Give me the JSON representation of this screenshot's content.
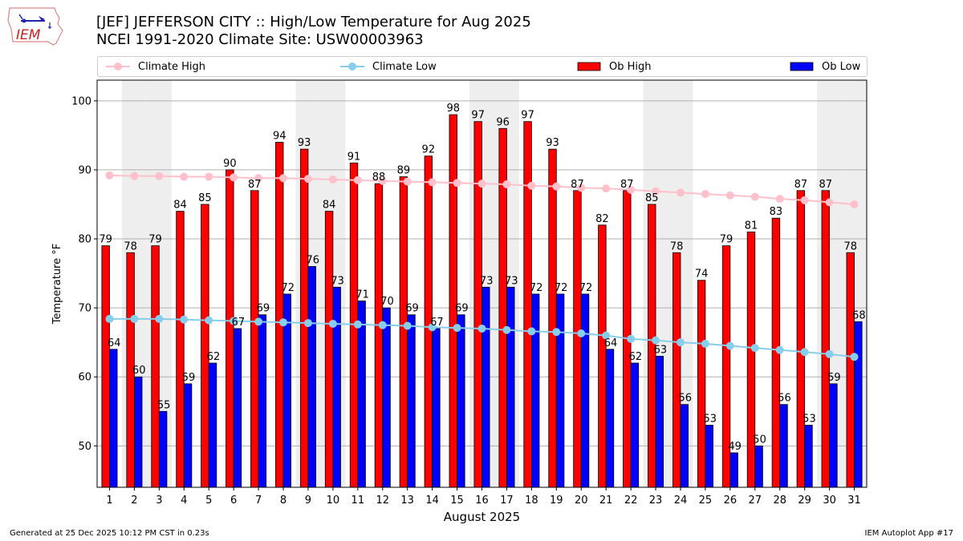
{
  "header": {
    "title_line1": "[JEF] JEFFERSON CITY :: High/Low Temperature for Aug 2025",
    "title_line2": "NCEI 1991-2020 Climate Site: USW00003963",
    "logo_text": "IEM"
  },
  "legend": {
    "items": [
      {
        "label": "Climate High",
        "color": "#ffc0cb",
        "kind": "line"
      },
      {
        "label": "Climate Low",
        "color": "#87ceeb",
        "kind": "line"
      },
      {
        "label": "Ob High",
        "color": "#ff0000",
        "kind": "bar"
      },
      {
        "label": "Ob Low",
        "color": "#0000ff",
        "kind": "bar"
      }
    ]
  },
  "footer": {
    "left": "Generated at 25 Dec 2025 10:12 PM CST in 0.23s",
    "right": "IEM Autoplot App #17"
  },
  "chart_data": {
    "type": "bar",
    "title": "[JEF] JEFFERSON CITY :: High/Low Temperature for Aug 2025",
    "subtitle": "NCEI 1991-2020 Climate Site: USW00003963",
    "xlabel": "August 2025",
    "ylabel": "Temperature °F",
    "ylim": [
      44,
      103
    ],
    "yticks": [
      50,
      60,
      70,
      80,
      90,
      100
    ],
    "grid": true,
    "legend_position": "top",
    "categories": [
      "1",
      "2",
      "3",
      "4",
      "5",
      "6",
      "7",
      "8",
      "9",
      "10",
      "11",
      "12",
      "13",
      "14",
      "15",
      "16",
      "17",
      "18",
      "19",
      "20",
      "21",
      "22",
      "23",
      "24",
      "25",
      "26",
      "27",
      "28",
      "29",
      "30",
      "31"
    ],
    "weekend_days": [
      2,
      3,
      9,
      10,
      16,
      17,
      23,
      24,
      30,
      31
    ],
    "series": [
      {
        "name": "Ob High",
        "type": "bar",
        "color": "#ff0000",
        "values": [
          79,
          78,
          79,
          84,
          85,
          90,
          87,
          94,
          93,
          84,
          91,
          88,
          89,
          92,
          98,
          97,
          96,
          97,
          93,
          87,
          82,
          87,
          85,
          78,
          74,
          79,
          81,
          83,
          87,
          87,
          78
        ]
      },
      {
        "name": "Ob Low",
        "type": "bar",
        "color": "#0000ff",
        "values": [
          64,
          60,
          55,
          59,
          62,
          67,
          69,
          72,
          76,
          73,
          71,
          70,
          69,
          67,
          69,
          73,
          73,
          72,
          72,
          72,
          64,
          62,
          63,
          56,
          53,
          49,
          50,
          56,
          53,
          59,
          68
        ]
      },
      {
        "name": "Climate High",
        "type": "line",
        "color": "#ffc0cb",
        "values": [
          89.2,
          89.1,
          89.1,
          89.0,
          89.0,
          88.9,
          88.8,
          88.8,
          88.7,
          88.6,
          88.5,
          88.4,
          88.3,
          88.2,
          88.1,
          88.0,
          87.9,
          87.7,
          87.6,
          87.4,
          87.3,
          87.1,
          86.9,
          86.7,
          86.5,
          86.3,
          86.1,
          85.8,
          85.6,
          85.3,
          85.0
        ]
      },
      {
        "name": "Climate Low",
        "type": "line",
        "color": "#87ceeb",
        "values": [
          68.4,
          68.4,
          68.4,
          68.3,
          68.2,
          68.1,
          68.0,
          67.9,
          67.8,
          67.7,
          67.6,
          67.5,
          67.4,
          67.2,
          67.1,
          67.0,
          66.8,
          66.6,
          66.5,
          66.3,
          66.0,
          65.5,
          65.3,
          65.0,
          64.8,
          64.5,
          64.2,
          63.9,
          63.6,
          63.3,
          62.9
        ]
      }
    ]
  }
}
